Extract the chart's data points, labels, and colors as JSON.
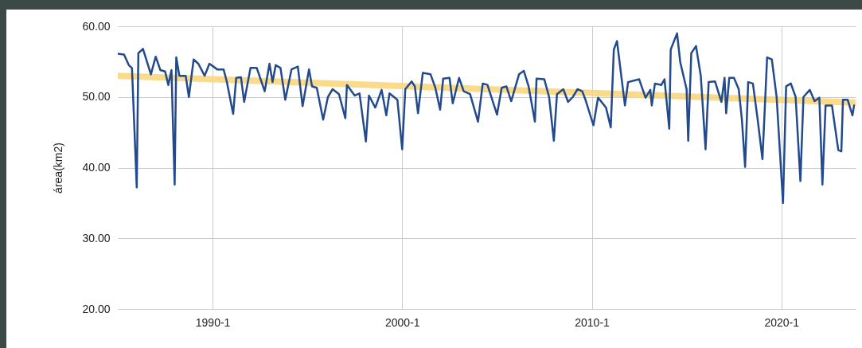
{
  "chart_data": {
    "type": "line",
    "ylabel": "área(km2)",
    "xlim": [
      "1985-01",
      "2023-12"
    ],
    "ylim": [
      20,
      60
    ],
    "yticks": [
      {
        "value": 20,
        "label": "20.00"
      },
      {
        "value": 30,
        "label": "30.00"
      },
      {
        "value": 40,
        "label": "40.00"
      },
      {
        "value": 50,
        "label": "50.00"
      },
      {
        "value": 60,
        "label": "60.00"
      }
    ],
    "xticks": [
      {
        "value": "1990-01",
        "label": "1990-1"
      },
      {
        "value": "2000-01",
        "label": "2000-1"
      },
      {
        "value": "2010-01",
        "label": "2010-1"
      },
      {
        "value": "2020-01",
        "label": "2020-1"
      }
    ],
    "grid": true,
    "marker": "none",
    "line_style": "solid",
    "series": [
      {
        "type": "line",
        "color": "#f9d77e",
        "x": [
          "1985-01",
          "2023-12"
        ],
        "values": [
          53.0,
          49.2
        ]
      },
      {
        "color": "#234a8c",
        "x": [
          "1985-01",
          "1985-05",
          "1985-08",
          "1985-10",
          "1986-01",
          "1986-02",
          "1986-05",
          "1986-10",
          "1987-01",
          "1987-04",
          "1987-07",
          "1987-09",
          "1987-11",
          "1988-01",
          "1988-02",
          "1988-04",
          "1988-08",
          "1988-10",
          "1989-01",
          "1989-04",
          "1989-08",
          "1989-11",
          "1990-04",
          "1990-08",
          "1990-10",
          "1991-02",
          "1991-04",
          "1991-07",
          "1991-09",
          "1992-01",
          "1992-05",
          "1992-10",
          "1993-01",
          "1993-03",
          "1993-05",
          "1993-08",
          "1993-11",
          "1994-03",
          "1994-07",
          "1994-10",
          "1995-02",
          "1995-04",
          "1995-07",
          "1995-11",
          "1996-02",
          "1996-05",
          "1996-09",
          "1997-01",
          "1997-02",
          "1997-07",
          "1997-10",
          "1998-02",
          "1998-04",
          "1998-08",
          "1998-12",
          "1999-03",
          "1999-05",
          "1999-10",
          "2000-01",
          "2000-03",
          "2000-07",
          "2000-09",
          "2000-11",
          "2001-02",
          "2001-07",
          "2001-10",
          "2002-01",
          "2002-03",
          "2002-07",
          "2002-09",
          "2003-01",
          "2003-04",
          "2003-08",
          "2004-01",
          "2004-04",
          "2004-07",
          "2005-01",
          "2005-04",
          "2005-07",
          "2005-10",
          "2006-03",
          "2006-06",
          "2006-09",
          "2007-01",
          "2007-02",
          "2007-07",
          "2007-10",
          "2008-01",
          "2008-03",
          "2008-07",
          "2008-10",
          "2009-01",
          "2009-04",
          "2009-07",
          "2009-09",
          "2010-02",
          "2010-05",
          "2010-10",
          "2011-01",
          "2011-03",
          "2011-05",
          "2011-10",
          "2011-12",
          "2012-07",
          "2012-11",
          "2013-02",
          "2013-03",
          "2013-05",
          "2013-09",
          "2013-11",
          "2014-02",
          "2014-03",
          "2014-07",
          "2014-09",
          "2015-01",
          "2015-02",
          "2015-04",
          "2015-07",
          "2015-10",
          "2016-01",
          "2016-03",
          "2016-07",
          "2016-11",
          "2017-01",
          "2017-02",
          "2017-04",
          "2017-07",
          "2017-10",
          "2017-12",
          "2018-02",
          "2018-04",
          "2018-07",
          "2018-10",
          "2019-01",
          "2019-04",
          "2019-07",
          "2019-10",
          "2020-02",
          "2020-04",
          "2020-07",
          "2020-10",
          "2021-01",
          "2021-03",
          "2021-07",
          "2021-10",
          "2022-01",
          "2022-03",
          "2022-05",
          "2022-09",
          "2023-01",
          "2023-03",
          "2023-04",
          "2023-07",
          "2023-10",
          "2023-11"
        ],
        "values": [
          56.1,
          56.0,
          54.5,
          54.1,
          37.2,
          56.2,
          56.8,
          53.2,
          55.7,
          53.8,
          53.6,
          51.7,
          53.8,
          37.6,
          55.6,
          53.0,
          53.0,
          50.0,
          55.3,
          54.7,
          53.0,
          54.7,
          53.9,
          53.9,
          52.2,
          47.6,
          52.7,
          52.8,
          49.3,
          54.1,
          54.1,
          50.8,
          54.7,
          52.1,
          54.5,
          54.1,
          49.6,
          53.9,
          54.3,
          48.7,
          53.9,
          51.5,
          51.3,
          46.8,
          50.0,
          51.1,
          50.4,
          47.0,
          51.7,
          50.2,
          50.5,
          43.7,
          50.2,
          48.5,
          51.0,
          47.4,
          50.5,
          49.6,
          42.6,
          51.1,
          52.2,
          51.5,
          47.7,
          53.4,
          53.2,
          51.3,
          48.2,
          52.6,
          52.7,
          49.1,
          52.7,
          50.8,
          50.4,
          46.5,
          51.9,
          51.7,
          47.5,
          51.3,
          51.5,
          49.4,
          53.2,
          53.7,
          51.5,
          46.5,
          52.6,
          52.5,
          50.0,
          43.8,
          50.4,
          51.1,
          49.3,
          50.0,
          51.1,
          50.8,
          49.6,
          46.0,
          49.9,
          48.5,
          45.7,
          56.7,
          57.9,
          48.8,
          52.1,
          52.5,
          49.9,
          51.0,
          48.8,
          51.9,
          51.7,
          52.5,
          45.5,
          56.7,
          59.0,
          54.9,
          51.1,
          43.8,
          56.2,
          57.2,
          53.0,
          42.6,
          52.1,
          52.2,
          49.3,
          52.7,
          47.7,
          52.7,
          52.7,
          51.1,
          46.8,
          40.1,
          52.1,
          51.9,
          46.8,
          41.2,
          55.6,
          55.3,
          50.0,
          35.0,
          51.5,
          51.9,
          50.0,
          38.1,
          50.0,
          51.0,
          49.4,
          49.9,
          37.6,
          48.8,
          48.8,
          42.5,
          42.3,
          49.6,
          49.6,
          47.4,
          48.8
        ]
      }
    ]
  }
}
